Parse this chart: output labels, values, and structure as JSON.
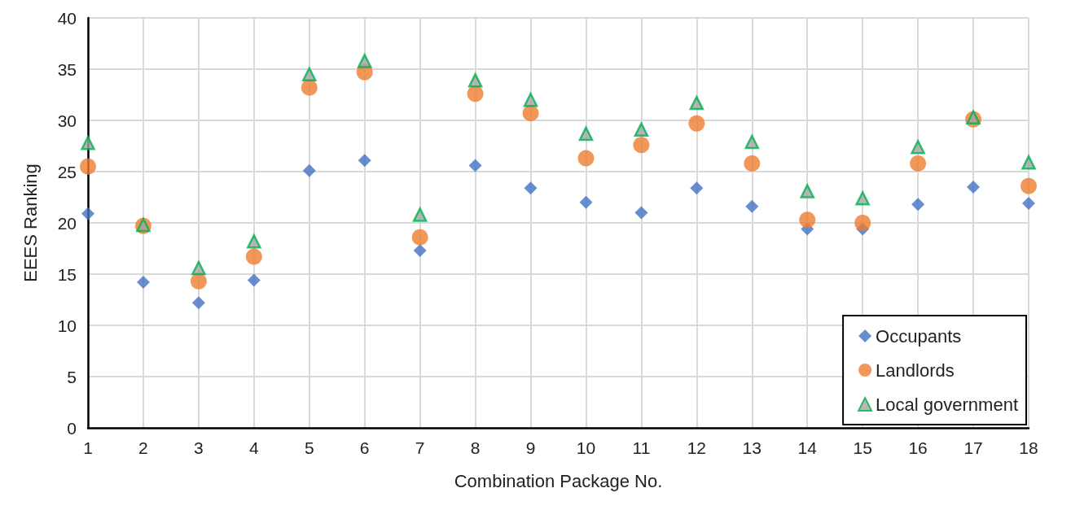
{
  "chart_data": {
    "type": "scatter",
    "xlabel": "Combination Package No.",
    "ylabel": "EEES Ranking",
    "x": [
      1,
      2,
      3,
      4,
      5,
      6,
      7,
      8,
      9,
      10,
      11,
      12,
      13,
      14,
      15,
      16,
      17,
      18
    ],
    "xlim": [
      1,
      18
    ],
    "xticks": [
      1,
      2,
      3,
      4,
      5,
      6,
      7,
      8,
      9,
      10,
      11,
      12,
      13,
      14,
      15,
      16,
      17,
      18
    ],
    "ylim": [
      0,
      40
    ],
    "yticks": [
      0,
      5,
      10,
      15,
      20,
      25,
      30,
      35,
      40
    ],
    "grid": true,
    "legend": "bottom right",
    "series": [
      {
        "name": "Occupants",
        "color": "#4472c4",
        "marker": "diamond",
        "values": [
          20.9,
          14.2,
          12.2,
          14.4,
          25.1,
          26.1,
          17.3,
          25.6,
          23.4,
          22.0,
          21.0,
          23.4,
          21.6,
          19.4,
          19.4,
          21.8,
          23.5,
          21.9
        ]
      },
      {
        "name": "Landlords",
        "color": "#ed7d31",
        "marker": "circle",
        "values": [
          25.5,
          19.7,
          14.3,
          16.7,
          33.2,
          34.7,
          18.6,
          32.6,
          30.7,
          26.3,
          27.6,
          29.7,
          25.8,
          20.3,
          20.0,
          25.8,
          30.1,
          23.6
        ]
      },
      {
        "name": "Local government",
        "color": "#00b050",
        "marker": "triangle",
        "values": [
          27.8,
          19.8,
          15.6,
          18.2,
          34.5,
          35.8,
          20.8,
          33.9,
          32.0,
          28.7,
          29.1,
          31.7,
          27.9,
          23.1,
          22.4,
          27.4,
          30.3,
          25.9
        ]
      }
    ]
  }
}
